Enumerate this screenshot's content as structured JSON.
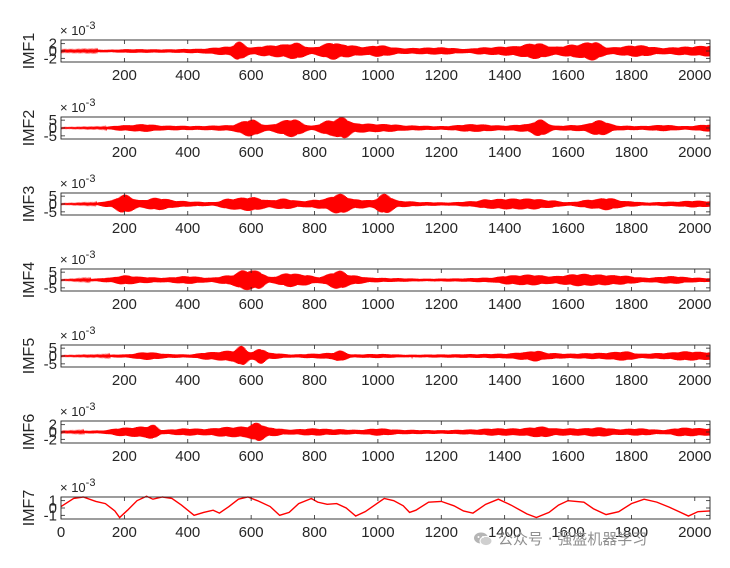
{
  "chart_data": {
    "type": "line",
    "layout": "stacked subplots, shared x axis",
    "series_color": "#ff0000",
    "axis_color": "#262626",
    "xlim": [
      0,
      2048
    ],
    "x_ticks_first_panel_style": [
      "200",
      "400",
      "600",
      "800",
      "1000",
      "1200",
      "1400",
      "1600",
      "1800",
      "2000"
    ],
    "x_ticks_last_panel": [
      "0",
      "200",
      "400",
      "600",
      "800",
      "1000",
      "1200",
      "1400",
      "1600",
      "1800",
      "2000"
    ],
    "panels": [
      {
        "name": "IMF1",
        "ylabel": "IMF1",
        "exponent_label": "× 10",
        "exponent_power": "-3",
        "ylim": [
          -3,
          3
        ],
        "yticks": [
          -2,
          0,
          2
        ],
        "ytick_labels": [
          "-2",
          "0",
          "2"
        ],
        "style": "oscillation",
        "envelope": [
          [
            0,
            0.25
          ],
          [
            150,
            0.35
          ],
          [
            220,
            0.5
          ],
          [
            330,
            0.45
          ],
          [
            430,
            0.6
          ],
          [
            530,
            1.2
          ],
          [
            560,
            2.6
          ],
          [
            600,
            1.0
          ],
          [
            650,
            1.5
          ],
          [
            700,
            1.8
          ],
          [
            740,
            2.3
          ],
          [
            790,
            1.0
          ],
          [
            860,
            2.4
          ],
          [
            890,
            1.8
          ],
          [
            960,
            1.2
          ],
          [
            1000,
            1.6
          ],
          [
            1080,
            0.8
          ],
          [
            1200,
            1.0
          ],
          [
            1280,
            0.6
          ],
          [
            1330,
            1.0
          ],
          [
            1420,
            1.3
          ],
          [
            1500,
            2.2
          ],
          [
            1560,
            1.2
          ],
          [
            1620,
            1.8
          ],
          [
            1680,
            2.6
          ],
          [
            1730,
            1.0
          ],
          [
            1820,
            1.6
          ],
          [
            1900,
            0.9
          ],
          [
            1970,
            1.2
          ],
          [
            2048,
            1.5
          ]
        ]
      },
      {
        "name": "IMF2",
        "ylabel": "IMF2",
        "exponent_label": "× 10",
        "exponent_power": "-3",
        "ylim": [
          -7,
          7
        ],
        "yticks": [
          -5,
          0,
          5
        ],
        "ytick_labels": [
          "-5",
          "0",
          "5"
        ],
        "style": "oscillation",
        "envelope": [
          [
            0,
            0.3
          ],
          [
            120,
            0.5
          ],
          [
            200,
            1.8
          ],
          [
            260,
            2.5
          ],
          [
            330,
            1.5
          ],
          [
            430,
            1.3
          ],
          [
            530,
            1.8
          ],
          [
            600,
            5.5
          ],
          [
            650,
            2.0
          ],
          [
            730,
            5.8
          ],
          [
            790,
            1.5
          ],
          [
            850,
            5.0
          ],
          [
            890,
            7.0
          ],
          [
            930,
            3.0
          ],
          [
            1030,
            2.5
          ],
          [
            1100,
            1.6
          ],
          [
            1200,
            1.2
          ],
          [
            1300,
            2.5
          ],
          [
            1400,
            1.6
          ],
          [
            1470,
            2.5
          ],
          [
            1510,
            5.5
          ],
          [
            1560,
            1.5
          ],
          [
            1640,
            2.0
          ],
          [
            1700,
            5.0
          ],
          [
            1760,
            1.5
          ],
          [
            1830,
            1.3
          ],
          [
            1900,
            2.0
          ],
          [
            1970,
            1.2
          ],
          [
            2048,
            2.3
          ]
        ]
      },
      {
        "name": "IMF3",
        "ylabel": "IMF3",
        "exponent_label": "× 10",
        "exponent_power": "-3",
        "ylim": [
          -7,
          7
        ],
        "yticks": [
          -5,
          0,
          5
        ],
        "ytick_labels": [
          "-5",
          "0",
          "5"
        ],
        "style": "oscillation",
        "envelope": [
          [
            0,
            0.3
          ],
          [
            100,
            0.6
          ],
          [
            150,
            2.0
          ],
          [
            200,
            6.0
          ],
          [
            250,
            2.5
          ],
          [
            300,
            4.0
          ],
          [
            380,
            2.0
          ],
          [
            420,
            1.5
          ],
          [
            480,
            1.2
          ],
          [
            530,
            3.5
          ],
          [
            600,
            4.5
          ],
          [
            660,
            2.5
          ],
          [
            700,
            3.5
          ],
          [
            760,
            2.0
          ],
          [
            820,
            3.0
          ],
          [
            880,
            6.5
          ],
          [
            930,
            3.0
          ],
          [
            980,
            2.5
          ],
          [
            1020,
            6.5
          ],
          [
            1070,
            2.0
          ],
          [
            1150,
            1.2
          ],
          [
            1220,
            1.0
          ],
          [
            1300,
            1.8
          ],
          [
            1340,
            3.0
          ],
          [
            1420,
            3.5
          ],
          [
            1490,
            3.5
          ],
          [
            1540,
            2.5
          ],
          [
            1600,
            1.2
          ],
          [
            1680,
            3.0
          ],
          [
            1720,
            4.0
          ],
          [
            1790,
            1.8
          ],
          [
            1850,
            1.0
          ],
          [
            1930,
            1.5
          ],
          [
            2000,
            2.2
          ],
          [
            2048,
            1.8
          ]
        ]
      },
      {
        "name": "IMF4",
        "ylabel": "IMF4",
        "exponent_label": "× 10",
        "exponent_power": "-3",
        "ylim": [
          -7,
          7
        ],
        "yticks": [
          -5,
          0,
          5
        ],
        "ytick_labels": [
          "-5",
          "0",
          "5"
        ],
        "style": "oscillation",
        "envelope": [
          [
            0,
            0.3
          ],
          [
            100,
            0.8
          ],
          [
            150,
            1.5
          ],
          [
            200,
            3.0
          ],
          [
            260,
            2.0
          ],
          [
            320,
            1.5
          ],
          [
            400,
            2.5
          ],
          [
            470,
            1.5
          ],
          [
            530,
            3.0
          ],
          [
            580,
            6.5
          ],
          [
            620,
            6.0
          ],
          [
            660,
            2.0
          ],
          [
            720,
            4.5
          ],
          [
            770,
            3.5
          ],
          [
            810,
            2.0
          ],
          [
            880,
            6.0
          ],
          [
            920,
            3.0
          ],
          [
            980,
            1.5
          ],
          [
            1050,
            1.2
          ],
          [
            1150,
            0.8
          ],
          [
            1250,
            1.0
          ],
          [
            1350,
            1.5
          ],
          [
            1420,
            3.0
          ],
          [
            1480,
            3.5
          ],
          [
            1550,
            2.5
          ],
          [
            1640,
            4.0
          ],
          [
            1700,
            3.5
          ],
          [
            1760,
            3.0
          ],
          [
            1850,
            1.5
          ],
          [
            1930,
            2.5
          ],
          [
            2000,
            1.5
          ],
          [
            2048,
            1.2
          ]
        ]
      },
      {
        "name": "IMF5",
        "ylabel": "IMF5",
        "exponent_label": "× 10",
        "exponent_power": "-3",
        "ylim": [
          -7,
          7
        ],
        "yticks": [
          -5,
          0,
          5
        ],
        "ytick_labels": [
          "-5",
          "0",
          "5"
        ],
        "style": "oscillation",
        "envelope": [
          [
            0,
            0.3
          ],
          [
            100,
            0.5
          ],
          [
            200,
            1.0
          ],
          [
            270,
            2.5
          ],
          [
            350,
            1.2
          ],
          [
            400,
            1.0
          ],
          [
            470,
            2.5
          ],
          [
            540,
            3.5
          ],
          [
            570,
            6.5
          ],
          [
            600,
            2.5
          ],
          [
            630,
            5.0
          ],
          [
            660,
            2.0
          ],
          [
            730,
            1.0
          ],
          [
            800,
            1.5
          ],
          [
            850,
            2.0
          ],
          [
            880,
            3.5
          ],
          [
            920,
            1.0
          ],
          [
            1000,
            1.3
          ],
          [
            1100,
            0.8
          ],
          [
            1200,
            1.0
          ],
          [
            1300,
            1.2
          ],
          [
            1400,
            1.5
          ],
          [
            1460,
            2.5
          ],
          [
            1500,
            3.5
          ],
          [
            1540,
            2.0
          ],
          [
            1600,
            1.5
          ],
          [
            1700,
            2.0
          ],
          [
            1780,
            3.0
          ],
          [
            1830,
            1.5
          ],
          [
            1900,
            2.0
          ],
          [
            1970,
            3.0
          ],
          [
            2048,
            2.5
          ]
        ]
      },
      {
        "name": "IMF6",
        "ylabel": "IMF6",
        "exponent_label": "× 10",
        "exponent_power": "-3",
        "ylim": [
          -3,
          3
        ],
        "yticks": [
          -2,
          0,
          2
        ],
        "ytick_labels": [
          "-2",
          "0",
          "2"
        ],
        "style": "oscillation",
        "envelope": [
          [
            0,
            0.2
          ],
          [
            120,
            0.4
          ],
          [
            200,
            1.2
          ],
          [
            260,
            1.5
          ],
          [
            290,
            2.0
          ],
          [
            320,
            0.6
          ],
          [
            400,
            1.0
          ],
          [
            450,
            0.9
          ],
          [
            530,
            1.4
          ],
          [
            580,
            1.5
          ],
          [
            620,
            2.6
          ],
          [
            660,
            1.2
          ],
          [
            720,
            0.7
          ],
          [
            800,
            1.0
          ],
          [
            860,
            0.8
          ],
          [
            940,
            0.6
          ],
          [
            1000,
            1.0
          ],
          [
            1080,
            0.6
          ],
          [
            1200,
            0.5
          ],
          [
            1300,
            0.7
          ],
          [
            1360,
            1.0
          ],
          [
            1440,
            1.0
          ],
          [
            1520,
            1.5
          ],
          [
            1560,
            1.0
          ],
          [
            1640,
            1.0
          ],
          [
            1700,
            1.3
          ],
          [
            1760,
            0.8
          ],
          [
            1820,
            1.0
          ],
          [
            1900,
            0.6
          ],
          [
            1960,
            1.2
          ],
          [
            2048,
            1.0
          ]
        ]
      },
      {
        "name": "IMF7",
        "ylabel": "IMF7",
        "exponent_label": "× 10",
        "exponent_power": "-3",
        "ylim": [
          -1.5,
          1.5
        ],
        "yticks": [
          -1,
          0,
          1
        ],
        "ytick_labels": [
          "-1",
          "0",
          "1"
        ],
        "style": "smooth",
        "points": [
          [
            0,
            0.2
          ],
          [
            40,
            1.3
          ],
          [
            70,
            1.5
          ],
          [
            110,
            0.9
          ],
          [
            140,
            0.6
          ],
          [
            170,
            -0.4
          ],
          [
            185,
            -1.3
          ],
          [
            210,
            -0.3
          ],
          [
            240,
            1.0
          ],
          [
            270,
            1.6
          ],
          [
            290,
            1.2
          ],
          [
            320,
            1.5
          ],
          [
            350,
            1.3
          ],
          [
            380,
            0.4
          ],
          [
            420,
            -1.0
          ],
          [
            450,
            -0.6
          ],
          [
            480,
            -0.3
          ],
          [
            500,
            -0.7
          ],
          [
            530,
            0.2
          ],
          [
            560,
            1.2
          ],
          [
            590,
            1.5
          ],
          [
            620,
            1.0
          ],
          [
            660,
            0.2
          ],
          [
            690,
            -1.0
          ],
          [
            720,
            -0.6
          ],
          [
            750,
            0.6
          ],
          [
            790,
            1.3
          ],
          [
            810,
            0.8
          ],
          [
            840,
            0.5
          ],
          [
            870,
            0.6
          ],
          [
            900,
            0.0
          ],
          [
            930,
            -1.1
          ],
          [
            960,
            -0.5
          ],
          [
            990,
            0.4
          ],
          [
            1020,
            1.3
          ],
          [
            1050,
            1.0
          ],
          [
            1080,
            0.3
          ],
          [
            1100,
            -0.6
          ],
          [
            1120,
            -0.3
          ],
          [
            1160,
            0.8
          ],
          [
            1200,
            0.9
          ],
          [
            1240,
            0.3
          ],
          [
            1270,
            -0.4
          ],
          [
            1300,
            -0.7
          ],
          [
            1340,
            0.5
          ],
          [
            1380,
            1.2
          ],
          [
            1420,
            0.4
          ],
          [
            1470,
            -0.8
          ],
          [
            1500,
            -1.3
          ],
          [
            1540,
            -0.6
          ],
          [
            1570,
            0.4
          ],
          [
            1600,
            1.0
          ],
          [
            1650,
            0.8
          ],
          [
            1680,
            -0.1
          ],
          [
            1720,
            -0.9
          ],
          [
            1760,
            -0.5
          ],
          [
            1800,
            0.6
          ],
          [
            1840,
            1.2
          ],
          [
            1880,
            0.8
          ],
          [
            1920,
            0.1
          ],
          [
            1950,
            -0.5
          ],
          [
            1980,
            -1.1
          ],
          [
            2010,
            -0.5
          ],
          [
            2048,
            -0.4
          ]
        ]
      }
    ]
  },
  "watermark": {
    "text": "公众号 · 强盛机器学习",
    "icon": "wechat-icon"
  }
}
